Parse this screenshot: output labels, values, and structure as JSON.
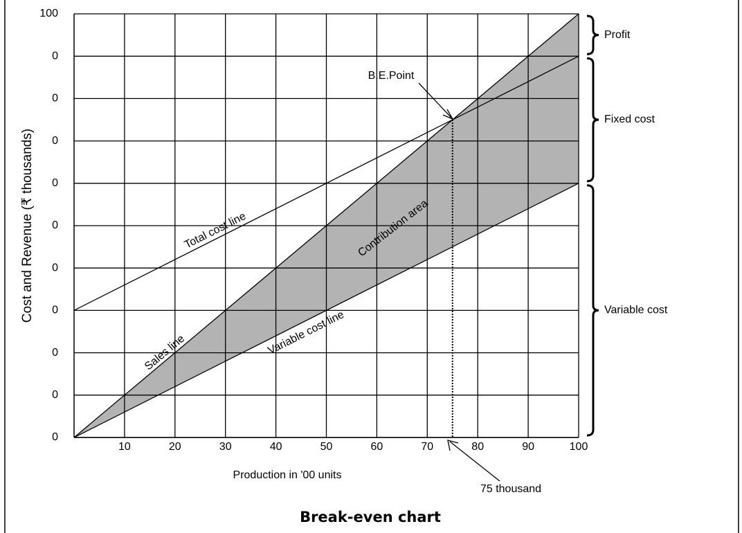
{
  "chart_data": {
    "type": "line",
    "title": "Break-even chart",
    "xlabel": "Production in '00 units",
    "ylabel": "Cost and Revenue (₹ thousands)",
    "xlim": [
      0,
      100
    ],
    "ylim": [
      0,
      100
    ],
    "xticks": [
      10,
      20,
      30,
      40,
      50,
      60,
      70,
      80,
      90,
      100
    ],
    "yticks": [
      0,
      {
        "value": 10,
        "label": "0"
      },
      {
        "value": 20,
        "label": "0"
      },
      {
        "value": 30,
        "label": "0"
      },
      {
        "value": 40,
        "label": "0"
      },
      {
        "value": 50,
        "label": "0"
      },
      {
        "value": 60,
        "label": "0"
      },
      {
        "value": 70,
        "label": "0"
      },
      {
        "value": 80,
        "label": "0"
      },
      {
        "value": 90,
        "label": "0"
      },
      100
    ],
    "grid": true,
    "series": [
      {
        "name": "Sales line",
        "color": "#000000",
        "x": [
          0,
          100
        ],
        "values": [
          0,
          100
        ]
      },
      {
        "name": "Total cost line",
        "color": "#000000",
        "x": [
          0,
          100
        ],
        "values": [
          30,
          90
        ]
      },
      {
        "name": "Variable cost line",
        "color": "#000000",
        "x": [
          0,
          100
        ],
        "values": [
          0,
          60
        ]
      }
    ],
    "contribution": {
      "text": "Contribution area",
      "color": "#b3b3b3"
    },
    "break_even": {
      "text": "B.E.Point",
      "x": 75,
      "y": 75,
      "x_label": "75 thousand"
    },
    "braces": [
      {
        "label": "Profit",
        "from": 90,
        "to": 100
      },
      {
        "label": "Fixed cost",
        "from": 60,
        "to": 90
      },
      {
        "label": "Variable cost",
        "from": 0,
        "to": 60
      }
    ]
  }
}
